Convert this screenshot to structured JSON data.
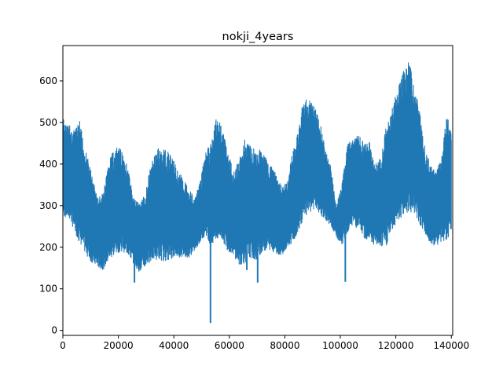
{
  "chart_data": {
    "type": "line",
    "title": "nokji_4years",
    "xlabel": "",
    "ylabel": "",
    "xlim": [
      0,
      140500
    ],
    "ylim": [
      -12,
      685
    ],
    "x_ticks": [
      0,
      20000,
      40000,
      60000,
      80000,
      100000,
      120000,
      140000
    ],
    "x_tick_labels": [
      "0",
      "20000",
      "40000",
      "60000",
      "80000",
      "100000",
      "120000",
      "140000"
    ],
    "y_ticks": [
      0,
      100,
      200,
      300,
      400,
      500,
      600
    ],
    "y_tick_labels": [
      "0",
      "100",
      "200",
      "300",
      "400",
      "500",
      "600"
    ],
    "grid": false,
    "legend": "none",
    "color": "#1f77b4",
    "series": [
      {
        "x": [
          0,
          1000,
          2500,
          4000,
          6000,
          8000,
          10000,
          12500,
          14500,
          17000,
          19500,
          21500,
          23500,
          25500,
          27500,
          29500,
          31500,
          34000,
          36500,
          38500,
          40500,
          43000,
          45500,
          47500,
          49500,
          51500,
          53500,
          55500,
          57500,
          59500,
          61500,
          63500,
          65500,
          67500,
          69500,
          71500,
          74000,
          76500,
          78500,
          80500,
          82500,
          84500,
          86500,
          88500,
          90500,
          92500,
          94500,
          96500,
          98500,
          100500,
          102500,
          104500,
          106500,
          108500,
          110500,
          112500,
          114500,
          116500,
          118500,
          120500,
          122500,
          124500,
          126500,
          128500,
          130500,
          132500,
          134500,
          136500,
          138500,
          140000
        ],
        "high": [
          515,
          500,
          495,
          480,
          505,
          440,
          390,
          320,
          330,
          420,
          440,
          435,
          390,
          320,
          310,
          325,
          395,
          440,
          435,
          430,
          400,
          370,
          345,
          315,
          360,
          430,
          455,
          525,
          490,
          430,
          385,
          410,
          460,
          450,
          430,
          440,
          405,
          380,
          350,
          355,
          420,
          470,
          550,
          560,
          545,
          510,
          440,
          400,
          300,
          350,
          450,
          460,
          470,
          455,
          455,
          400,
          420,
          490,
          530,
          580,
          620,
          655,
          600,
          530,
          440,
          400,
          380,
          420,
          530,
          480
        ],
        "low": [
          275,
          270,
          265,
          240,
          210,
          185,
          165,
          150,
          145,
          170,
          185,
          190,
          180,
          160,
          140,
          150,
          165,
          170,
          165,
          170,
          175,
          175,
          175,
          190,
          210,
          230,
          200,
          215,
          215,
          190,
          180,
          155,
          160,
          175,
          165,
          185,
          195,
          185,
          180,
          190,
          210,
          230,
          265,
          280,
          290,
          280,
          265,
          250,
          225,
          200,
          235,
          255,
          240,
          220,
          215,
          200,
          200,
          200,
          235,
          260,
          270,
          285,
          280,
          255,
          230,
          205,
          200,
          215,
          215,
          240
        ],
        "spikes": [
          {
            "x": 53200,
            "y": 18
          },
          {
            "x": 25800,
            "y": 115
          },
          {
            "x": 70200,
            "y": 115
          },
          {
            "x": 101800,
            "y": 117
          },
          {
            "x": 66300,
            "y": 145
          }
        ]
      }
    ]
  }
}
